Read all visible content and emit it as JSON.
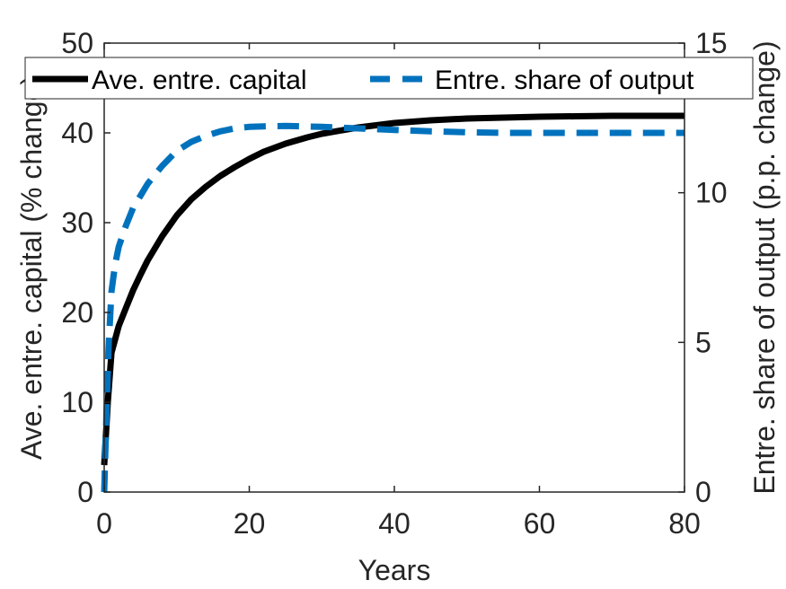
{
  "chart_data": {
    "type": "line",
    "xlabel": "Years",
    "ylabel_left": "Ave. entre. capital (% change)",
    "ylabel_right": "Entre. share of output (p.p. change)",
    "xlim": [
      0,
      80
    ],
    "ylim_left": [
      0,
      50
    ],
    "ylim_right": [
      0,
      15
    ],
    "xticks": [
      "0",
      "20",
      "40",
      "60",
      "80"
    ],
    "yticks_left": [
      "0",
      "10",
      "20",
      "30",
      "40",
      "50"
    ],
    "yticks_right": [
      "0",
      "5",
      "10",
      "15"
    ],
    "grid": false,
    "legend_placement": "top",
    "series": [
      {
        "name": "Ave. entre. capital",
        "axis": "left",
        "style": "solid",
        "color": "#000000",
        "x": [
          0,
          0.5,
          1,
          2,
          3,
          4,
          5,
          6,
          8,
          10,
          12,
          14,
          16,
          18,
          20,
          22,
          25,
          28,
          30,
          35,
          40,
          45,
          50,
          55,
          60,
          65,
          70,
          75,
          80
        ],
        "y": [
          3,
          10,
          15.5,
          18.5,
          20.5,
          22.5,
          24.2,
          25.8,
          28.5,
          30.8,
          32.6,
          34.0,
          35.2,
          36.2,
          37.1,
          37.9,
          38.8,
          39.5,
          39.9,
          40.6,
          41.1,
          41.4,
          41.6,
          41.7,
          41.8,
          41.85,
          41.9,
          41.9,
          41.9
        ]
      },
      {
        "name": "Entre. share of output",
        "axis": "right",
        "style": "dashed",
        "color": "#0072BD",
        "x": [
          0,
          0.3,
          0.6,
          1,
          1.5,
          2,
          3,
          4,
          5,
          6,
          8,
          10,
          12,
          14,
          16,
          18,
          20,
          22,
          25,
          30,
          35,
          40,
          45,
          50,
          55,
          60,
          65,
          70,
          75,
          80
        ],
        "y": [
          0,
          2.5,
          4.8,
          6.7,
          7.6,
          8.2,
          8.9,
          9.5,
          9.9,
          10.3,
          10.9,
          11.4,
          11.7,
          11.9,
          12.05,
          12.15,
          12.2,
          12.22,
          12.23,
          12.2,
          12.15,
          12.1,
          12.05,
          12.02,
          12.0,
          12.0,
          12.0,
          12.0,
          12.0,
          12.0
        ]
      }
    ]
  }
}
